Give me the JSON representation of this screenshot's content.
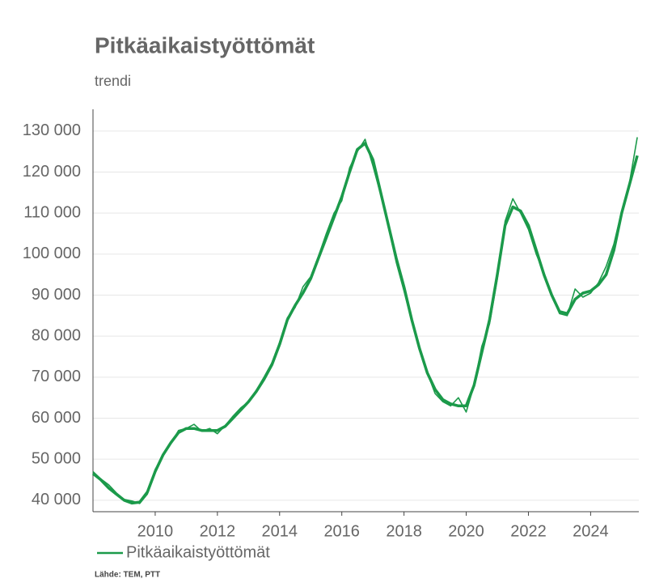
{
  "chart_data": {
    "type": "line",
    "title": "Pitkäaikaistyöttömät",
    "subtitle": "trendi",
    "source": "Lähde: TEM, PTT",
    "x": [
      2008.0,
      2008.25,
      2008.5,
      2008.75,
      2009.0,
      2009.25,
      2009.5,
      2009.75,
      2010.0,
      2010.25,
      2010.5,
      2010.75,
      2011.0,
      2011.25,
      2011.5,
      2011.75,
      2012.0,
      2012.25,
      2012.5,
      2012.75,
      2013.0,
      2013.25,
      2013.5,
      2013.75,
      2014.0,
      2014.25,
      2014.5,
      2014.75,
      2015.0,
      2015.25,
      2015.5,
      2015.75,
      2016.0,
      2016.25,
      2016.5,
      2016.75,
      2017.0,
      2017.25,
      2017.5,
      2017.75,
      2018.0,
      2018.25,
      2018.5,
      2018.75,
      2019.0,
      2019.25,
      2019.5,
      2019.75,
      2020.0,
      2020.25,
      2020.5,
      2020.75,
      2021.0,
      2021.25,
      2021.5,
      2021.75,
      2022.0,
      2022.25,
      2022.5,
      2022.75,
      2023.0,
      2023.25,
      2023.5,
      2023.75,
      2024.0,
      2024.25,
      2024.5,
      2024.75,
      2025.0,
      2025.25,
      2025.5
    ],
    "series": [
      {
        "name": "Pitkäaikaistyöttömät",
        "color": "#1b9a4a",
        "width": 1.6,
        "values": [
          47000,
          45200,
          43800,
          41800,
          40200,
          39800,
          39200,
          41500,
          47500,
          50800,
          53800,
          57000,
          57500,
          58500,
          56800,
          57500,
          56200,
          58200,
          60500,
          62500,
          64000,
          66800,
          70000,
          73500,
          78500,
          84500,
          87000,
          92000,
          94500,
          99500,
          105000,
          110000,
          113000,
          121000,
          125000,
          128000,
          121500,
          114500,
          106500,
          98000,
          91000,
          83500,
          76500,
          71000,
          66000,
          64000,
          63000,
          65000,
          61500,
          68000,
          77500,
          83000,
          94000,
          108000,
          113500,
          110000,
          106000,
          100000,
          95500,
          90000,
          85500,
          85000,
          91500,
          89500,
          90500,
          93000,
          97000,
          102500,
          110500,
          117500,
          128500
        ]
      },
      {
        "color": "#1b9a4a",
        "width": 3.5,
        "values": [
          46500,
          45000,
          43000,
          41500,
          40000,
          39300,
          39500,
          42000,
          47000,
          51000,
          54000,
          56500,
          57500,
          57500,
          57000,
          57000,
          57000,
          58000,
          60000,
          62000,
          64000,
          66500,
          69500,
          73000,
          78000,
          84000,
          87500,
          90500,
          94000,
          99000,
          104000,
          109000,
          114000,
          120000,
          125500,
          127000,
          123000,
          115000,
          107000,
          99000,
          92000,
          84000,
          77000,
          71000,
          67000,
          64500,
          63500,
          63000,
          63000,
          68000,
          76000,
          84000,
          95000,
          107000,
          111500,
          110500,
          107000,
          101000,
          95000,
          90000,
          86000,
          85500,
          89000,
          90500,
          91000,
          92500,
          95000,
          101000,
          110000,
          117000,
          124000
        ]
      }
    ],
    "xlim": [
      2008.0,
      2025.55
    ],
    "xticks": [
      2010,
      2012,
      2014,
      2016,
      2018,
      2020,
      2022,
      2024
    ],
    "ylim": [
      37200,
      135300
    ],
    "yticks": [
      {
        "value": 40000,
        "label": "40 000"
      },
      {
        "value": 50000,
        "label": "50 000"
      },
      {
        "value": 60000,
        "label": "60 000"
      },
      {
        "value": 70000,
        "label": "70 000"
      },
      {
        "value": 80000,
        "label": "80 000"
      },
      {
        "value": 90000,
        "label": "90 000"
      },
      {
        "value": 100000,
        "label": "100 000"
      },
      {
        "value": 110000,
        "label": "110 000"
      },
      {
        "value": 120000,
        "label": "120 000"
      },
      {
        "value": 130000,
        "label": "130 000"
      }
    ],
    "grid": true
  }
}
